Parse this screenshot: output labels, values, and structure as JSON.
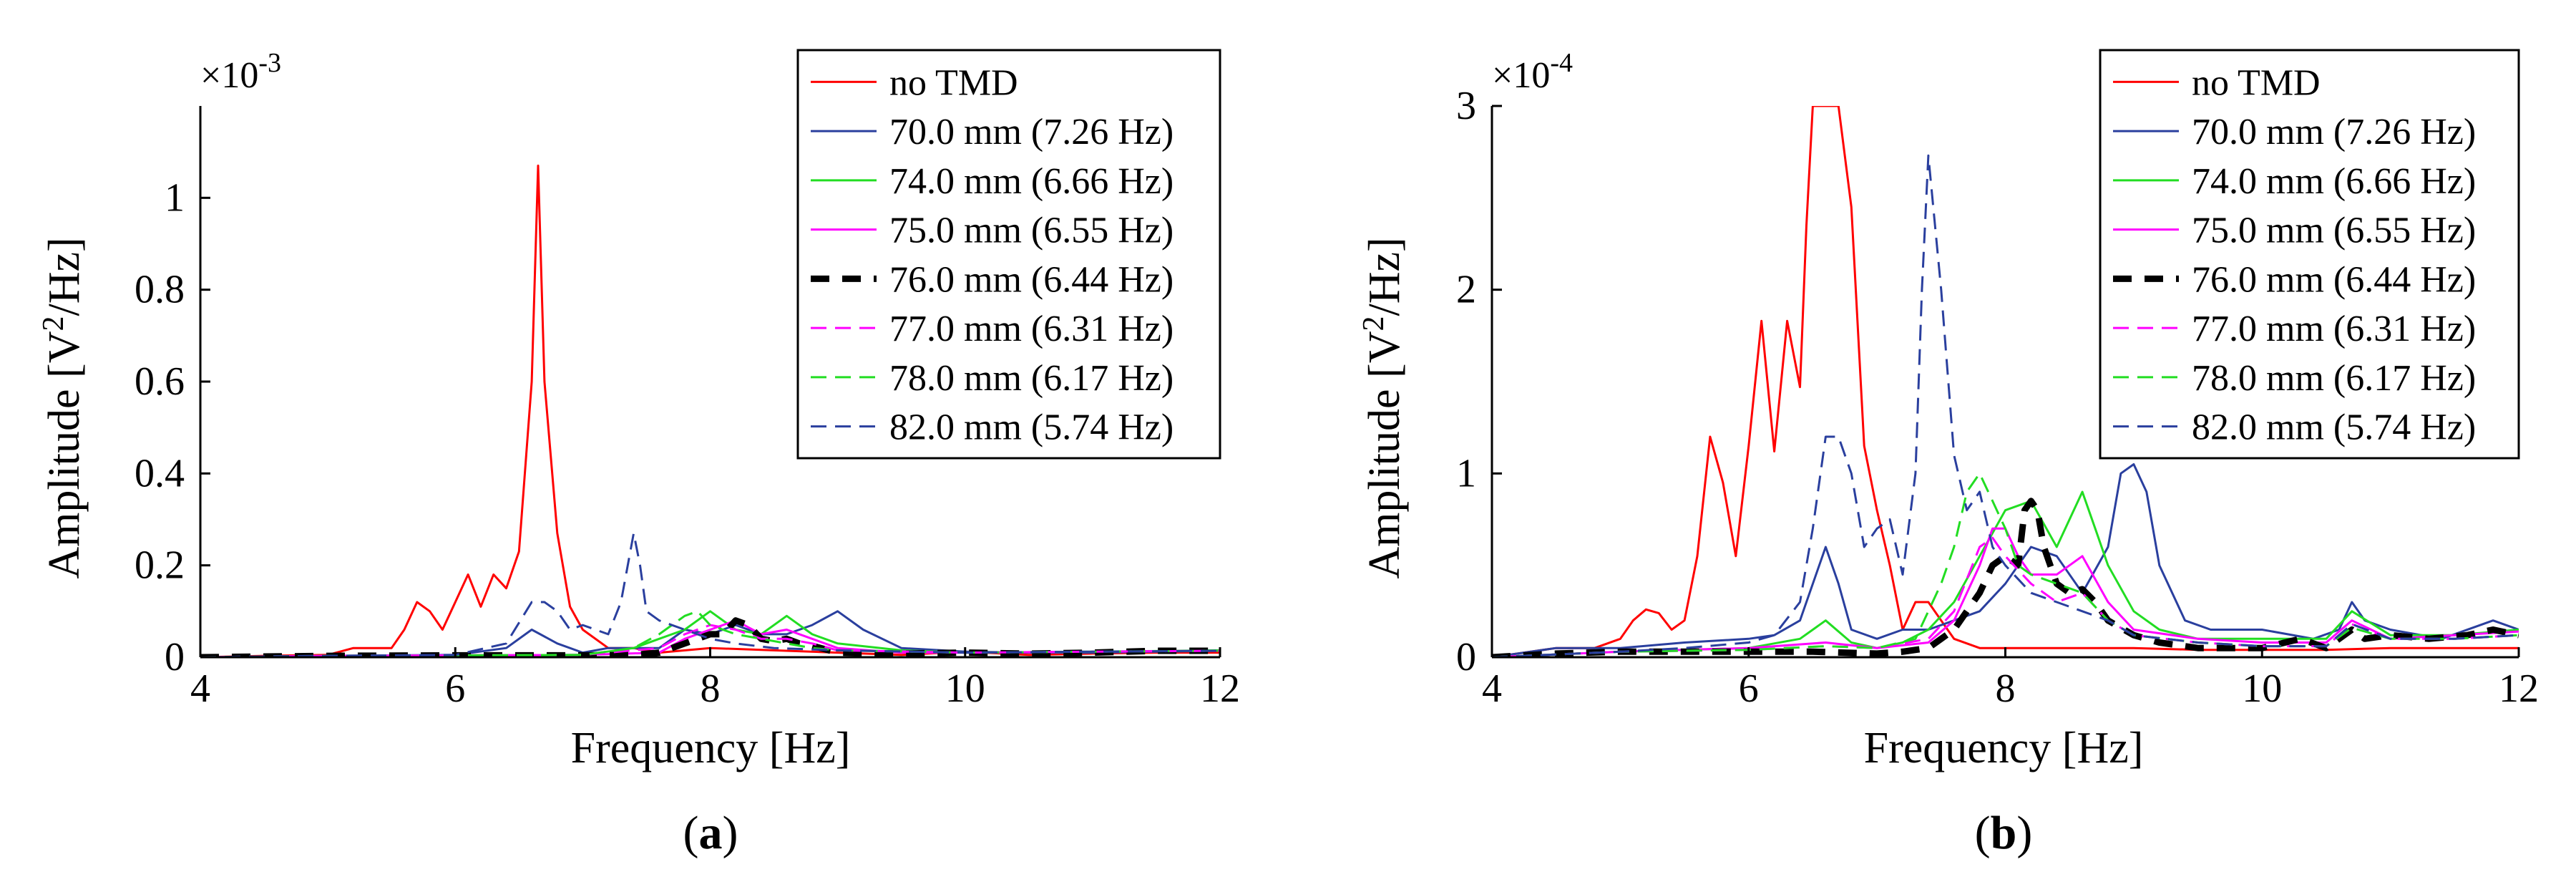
{
  "chart_data": [
    {
      "type": "line",
      "panel_label": "a",
      "xlabel": "Frequency [Hz]",
      "ylabel": "Amplitude [V²/Hz]",
      "ylabel_main": "Amplitude [V",
      "ylabel_sup": "2",
      "ylabel_tail": "/Hz]",
      "exponent_base": "×10",
      "exponent_power": "-3",
      "xlim": [
        4,
        12
      ],
      "ylim": [
        0,
        1.2
      ],
      "xticks": [
        4,
        6,
        8,
        10,
        12
      ],
      "yticks": [
        0,
        0.2,
        0.4,
        0.6,
        0.8,
        1.0
      ],
      "ytick_labels": [
        "0",
        "0.2",
        "0.4",
        "0.6",
        "0.8",
        "1"
      ],
      "legend_position": "top-right",
      "series": [
        {
          "name": "no TMD",
          "color": "#ff0000",
          "style": "solid",
          "width": "normal",
          "x": [
            4.0,
            4.5,
            5.0,
            5.2,
            5.4,
            5.5,
            5.6,
            5.7,
            5.8,
            5.9,
            6.0,
            6.1,
            6.2,
            6.3,
            6.4,
            6.5,
            6.6,
            6.65,
            6.7,
            6.8,
            6.9,
            7.0,
            7.2,
            7.4,
            7.6,
            8.0,
            8.5,
            9.0,
            9.5,
            10.0,
            10.5,
            11.0,
            11.5,
            12.0
          ],
          "y": [
            0.0,
            0.003,
            0.005,
            0.02,
            0.02,
            0.02,
            0.06,
            0.12,
            0.1,
            0.06,
            0.12,
            0.18,
            0.11,
            0.18,
            0.15,
            0.23,
            0.6,
            1.07,
            0.6,
            0.27,
            0.11,
            0.06,
            0.02,
            0.02,
            0.01,
            0.02,
            0.015,
            0.01,
            0.005,
            0.012,
            0.005,
            0.008,
            0.01,
            0.01
          ]
        },
        {
          "name": "70.0 mm (7.26 Hz)",
          "color": "#2a3f9e",
          "style": "solid",
          "width": "normal",
          "x": [
            4.0,
            5.0,
            6.0,
            6.4,
            6.6,
            6.8,
            7.0,
            7.2,
            7.4,
            7.6,
            7.8,
            8.0,
            8.2,
            8.4,
            8.6,
            8.8,
            9.0,
            9.2,
            9.5,
            10.0,
            10.5,
            11.0,
            11.5,
            12.0
          ],
          "y": [
            0.0,
            0.003,
            0.005,
            0.02,
            0.06,
            0.03,
            0.01,
            0.02,
            0.02,
            0.02,
            0.06,
            0.05,
            0.07,
            0.05,
            0.05,
            0.07,
            0.1,
            0.06,
            0.02,
            0.012,
            0.01,
            0.01,
            0.012,
            0.014
          ]
        },
        {
          "name": "74.0 mm (6.66 Hz)",
          "color": "#22dd22",
          "style": "solid",
          "width": "normal",
          "x": [
            4.0,
            5.0,
            6.0,
            7.0,
            7.4,
            7.6,
            7.8,
            8.0,
            8.2,
            8.4,
            8.6,
            8.8,
            9.0,
            9.5,
            10.0,
            11.0,
            12.0
          ],
          "y": [
            0.0,
            0.003,
            0.004,
            0.005,
            0.02,
            0.04,
            0.06,
            0.1,
            0.06,
            0.05,
            0.09,
            0.05,
            0.03,
            0.015,
            0.01,
            0.012,
            0.015
          ]
        },
        {
          "name": "75.0 mm (6.55 Hz)",
          "color": "#ff00ff",
          "style": "solid",
          "width": "normal",
          "x": [
            4.0,
            5.0,
            6.0,
            7.0,
            7.6,
            7.8,
            8.0,
            8.2,
            8.4,
            8.6,
            8.8,
            9.0,
            9.5,
            10.0,
            11.0,
            12.0
          ],
          "y": [
            0.0,
            0.003,
            0.004,
            0.005,
            0.01,
            0.04,
            0.06,
            0.08,
            0.05,
            0.06,
            0.04,
            0.02,
            0.01,
            0.01,
            0.012,
            0.014
          ]
        },
        {
          "name": "76.0 mm (6.44 Hz)",
          "color": "#000000",
          "style": "dashed",
          "width": "thick",
          "x": [
            4.0,
            5.0,
            6.0,
            7.0,
            7.4,
            7.6,
            7.8,
            8.0,
            8.1,
            8.2,
            8.3,
            8.4,
            8.5,
            8.6,
            8.7,
            8.8,
            9.0,
            9.5,
            10.0,
            10.5,
            11.0,
            11.5,
            12.0
          ],
          "y": [
            0.0,
            0.003,
            0.004,
            0.004,
            0.005,
            0.01,
            0.03,
            0.05,
            0.05,
            0.08,
            0.07,
            0.04,
            0.035,
            0.04,
            0.03,
            0.025,
            0.01,
            0.008,
            0.01,
            0.008,
            0.01,
            0.014,
            0.014
          ]
        },
        {
          "name": "77.0 mm (6.31 Hz)",
          "color": "#ff00ff",
          "style": "dashed",
          "width": "normal",
          "x": [
            4.0,
            5.0,
            6.0,
            7.0,
            7.6,
            7.8,
            8.0,
            8.2,
            8.4,
            8.6,
            8.8,
            9.0,
            10.0,
            11.0,
            12.0
          ],
          "y": [
            0.0,
            0.003,
            0.004,
            0.005,
            0.02,
            0.05,
            0.07,
            0.06,
            0.04,
            0.04,
            0.03,
            0.015,
            0.01,
            0.012,
            0.014
          ]
        },
        {
          "name": "78.0 mm (6.17 Hz)",
          "color": "#22dd22",
          "style": "dashed",
          "width": "normal",
          "x": [
            4.0,
            5.0,
            6.0,
            7.0,
            7.4,
            7.6,
            7.8,
            7.9,
            8.0,
            8.2,
            8.4,
            8.6,
            8.8,
            9.0,
            10.0,
            11.0,
            12.0
          ],
          "y": [
            0.0,
            0.003,
            0.004,
            0.005,
            0.02,
            0.05,
            0.09,
            0.1,
            0.07,
            0.05,
            0.04,
            0.03,
            0.02,
            0.015,
            0.01,
            0.012,
            0.014
          ]
        },
        {
          "name": "82.0 mm (5.74 Hz)",
          "color": "#2a3f9e",
          "style": "dashed",
          "width": "normal",
          "x": [
            4.0,
            5.0,
            6.0,
            6.4,
            6.6,
            6.7,
            6.8,
            6.9,
            7.0,
            7.2,
            7.3,
            7.4,
            7.45,
            7.5,
            7.6,
            7.8,
            8.0,
            8.2,
            8.5,
            9.0,
            10.0,
            11.0,
            12.0
          ],
          "y": [
            0.0,
            0.003,
            0.005,
            0.03,
            0.12,
            0.12,
            0.1,
            0.06,
            0.07,
            0.05,
            0.12,
            0.27,
            0.2,
            0.1,
            0.08,
            0.06,
            0.04,
            0.03,
            0.02,
            0.015,
            0.01,
            0.012,
            0.014
          ]
        }
      ]
    },
    {
      "type": "line",
      "panel_label": "b",
      "xlabel": "Frequency [Hz]",
      "ylabel": "Amplitude [V²/Hz]",
      "ylabel_main": "Amplitude [V",
      "ylabel_sup": "2",
      "ylabel_tail": "/Hz]",
      "exponent_base": "×10",
      "exponent_power": "-4",
      "xlim": [
        4,
        12
      ],
      "ylim": [
        0,
        3
      ],
      "xticks": [
        4,
        6,
        8,
        10,
        12
      ],
      "yticks": [
        0,
        1,
        2,
        3
      ],
      "ytick_labels": [
        "0",
        "1",
        "2",
        "3"
      ],
      "legend_position": "top-right",
      "series": [
        {
          "name": "no TMD",
          "color": "#ff0000",
          "style": "solid",
          "width": "normal",
          "x": [
            4.0,
            4.5,
            4.8,
            5.0,
            5.1,
            5.2,
            5.3,
            5.4,
            5.5,
            5.6,
            5.7,
            5.8,
            5.9,
            6.0,
            6.1,
            6.2,
            6.3,
            6.4,
            6.45,
            6.5,
            6.7,
            6.8,
            6.9,
            7.0,
            7.1,
            7.2,
            7.3,
            7.4,
            7.5,
            7.6,
            7.8,
            8.0,
            8.5,
            9.0,
            9.5,
            10.0,
            10.5,
            11.0,
            11.5,
            12.0
          ],
          "y": [
            0.0,
            0.05,
            0.05,
            0.1,
            0.2,
            0.26,
            0.24,
            0.15,
            0.2,
            0.55,
            1.2,
            0.95,
            0.55,
            1.15,
            1.83,
            1.12,
            1.83,
            1.47,
            2.35,
            3.0,
            3.0,
            2.45,
            1.15,
            0.8,
            0.5,
            0.15,
            0.3,
            0.3,
            0.2,
            0.1,
            0.05,
            0.05,
            0.05,
            0.05,
            0.04,
            0.04,
            0.04,
            0.05,
            0.05,
            0.05
          ]
        },
        {
          "name": "70.0 mm (7.26 Hz)",
          "color": "#2a3f9e",
          "style": "solid",
          "width": "normal",
          "x": [
            4.0,
            4.5,
            5.0,
            5.5,
            6.0,
            6.2,
            6.4,
            6.6,
            6.7,
            6.8,
            7.0,
            7.2,
            7.4,
            7.6,
            7.8,
            8.0,
            8.2,
            8.4,
            8.6,
            8.8,
            8.9,
            9.0,
            9.1,
            9.2,
            9.4,
            9.6,
            10.0,
            10.4,
            10.6,
            10.7,
            10.8,
            11.0,
            11.4,
            11.8,
            12.0
          ],
          "y": [
            0.0,
            0.05,
            0.05,
            0.08,
            0.1,
            0.12,
            0.2,
            0.6,
            0.4,
            0.15,
            0.1,
            0.15,
            0.15,
            0.2,
            0.25,
            0.4,
            0.6,
            0.55,
            0.35,
            0.6,
            1.0,
            1.05,
            0.9,
            0.5,
            0.2,
            0.15,
            0.15,
            0.1,
            0.15,
            0.3,
            0.2,
            0.15,
            0.1,
            0.2,
            0.15
          ]
        },
        {
          "name": "74.0 mm (6.66 Hz)",
          "color": "#22dd22",
          "style": "solid",
          "width": "normal",
          "x": [
            4.0,
            5.0,
            6.0,
            6.4,
            6.6,
            6.8,
            7.0,
            7.2,
            7.4,
            7.6,
            7.8,
            8.0,
            8.2,
            8.4,
            8.6,
            8.7,
            8.8,
            9.0,
            9.2,
            9.5,
            10.0,
            10.5,
            10.7,
            11.0,
            11.5,
            12.0
          ],
          "y": [
            0.0,
            0.03,
            0.05,
            0.1,
            0.2,
            0.08,
            0.05,
            0.08,
            0.15,
            0.3,
            0.55,
            0.8,
            0.85,
            0.6,
            0.9,
            0.7,
            0.5,
            0.25,
            0.15,
            0.1,
            0.1,
            0.1,
            0.25,
            0.12,
            0.12,
            0.15
          ]
        },
        {
          "name": "75.0 mm (6.55 Hz)",
          "color": "#ff00ff",
          "style": "solid",
          "width": "normal",
          "x": [
            4.0,
            5.0,
            6.0,
            6.6,
            7.0,
            7.4,
            7.6,
            7.8,
            7.9,
            8.0,
            8.1,
            8.2,
            8.4,
            8.5,
            8.6,
            8.8,
            9.0,
            9.5,
            10.0,
            10.5,
            10.7,
            11.0,
            11.5,
            12.0
          ],
          "y": [
            0.0,
            0.03,
            0.05,
            0.08,
            0.05,
            0.08,
            0.2,
            0.5,
            0.7,
            0.7,
            0.55,
            0.45,
            0.45,
            0.5,
            0.55,
            0.3,
            0.15,
            0.1,
            0.08,
            0.08,
            0.2,
            0.1,
            0.12,
            0.14
          ]
        },
        {
          "name": "76.0 mm (6.44 Hz)",
          "color": "#000000",
          "style": "dashed",
          "width": "thick",
          "x": [
            4.0,
            4.5,
            5.0,
            5.5,
            6.0,
            6.5,
            7.0,
            7.2,
            7.4,
            7.5,
            7.6,
            7.7,
            7.8,
            7.9,
            8.0,
            8.1,
            8.15,
            8.2,
            8.25,
            8.3,
            8.4,
            8.5,
            8.6,
            8.7,
            8.8,
            9.0,
            9.2,
            9.5,
            10.0,
            10.3,
            10.5,
            10.7,
            10.8,
            11.0,
            11.3,
            11.6,
            11.8,
            12.0
          ],
          "y": [
            0.0,
            0.02,
            0.03,
            0.03,
            0.03,
            0.03,
            0.02,
            0.03,
            0.05,
            0.1,
            0.15,
            0.25,
            0.35,
            0.5,
            0.55,
            0.5,
            0.8,
            0.85,
            0.8,
            0.6,
            0.4,
            0.35,
            0.37,
            0.3,
            0.2,
            0.12,
            0.08,
            0.05,
            0.05,
            0.1,
            0.05,
            0.15,
            0.1,
            0.12,
            0.1,
            0.12,
            0.15,
            0.12
          ]
        },
        {
          "name": "77.0 mm (6.31 Hz)",
          "color": "#ff00ff",
          "style": "dashed",
          "width": "normal",
          "x": [
            4.0,
            5.0,
            6.0,
            6.6,
            7.0,
            7.4,
            7.6,
            7.8,
            7.9,
            8.0,
            8.2,
            8.4,
            8.6,
            8.8,
            9.0,
            9.5,
            10.0,
            10.5,
            10.7,
            11.0,
            11.5,
            12.0
          ],
          "y": [
            0.0,
            0.03,
            0.04,
            0.06,
            0.05,
            0.1,
            0.25,
            0.6,
            0.65,
            0.55,
            0.4,
            0.3,
            0.35,
            0.2,
            0.12,
            0.08,
            0.06,
            0.06,
            0.18,
            0.1,
            0.1,
            0.12
          ]
        },
        {
          "name": "78.0 mm (6.17 Hz)",
          "color": "#22dd22",
          "style": "dashed",
          "width": "normal",
          "x": [
            4.0,
            5.0,
            6.0,
            6.6,
            7.0,
            7.3,
            7.5,
            7.6,
            7.7,
            7.8,
            7.9,
            8.0,
            8.1,
            8.2,
            8.4,
            8.6,
            8.8,
            9.0,
            9.5,
            10.0,
            10.5,
            10.7,
            11.0,
            11.5,
            12.0
          ],
          "y": [
            0.0,
            0.03,
            0.04,
            0.06,
            0.05,
            0.1,
            0.4,
            0.6,
            0.9,
            1.0,
            0.85,
            0.7,
            0.5,
            0.45,
            0.4,
            0.35,
            0.2,
            0.12,
            0.08,
            0.06,
            0.06,
            0.16,
            0.1,
            0.1,
            0.12
          ]
        },
        {
          "name": "82.0 mm (5.74 Hz)",
          "color": "#2a3f9e",
          "style": "dashed",
          "width": "normal",
          "x": [
            4.0,
            5.0,
            5.5,
            6.0,
            6.2,
            6.4,
            6.5,
            6.6,
            6.7,
            6.8,
            6.9,
            7.0,
            7.1,
            7.2,
            7.3,
            7.35,
            7.4,
            7.5,
            7.6,
            7.7,
            7.8,
            7.9,
            8.0,
            8.2,
            8.4,
            8.6,
            8.8,
            9.0,
            9.5,
            10.0,
            10.5,
            10.7,
            11.0,
            11.5,
            12.0
          ],
          "y": [
            0.0,
            0.03,
            0.05,
            0.08,
            0.12,
            0.3,
            0.7,
            1.2,
            1.2,
            1.0,
            0.6,
            0.7,
            0.75,
            0.45,
            1.0,
            2.0,
            2.73,
            2.0,
            1.1,
            0.8,
            0.9,
            0.6,
            0.5,
            0.35,
            0.3,
            0.25,
            0.2,
            0.12,
            0.08,
            0.06,
            0.06,
            0.18,
            0.1,
            0.1,
            0.12
          ]
        }
      ]
    }
  ]
}
